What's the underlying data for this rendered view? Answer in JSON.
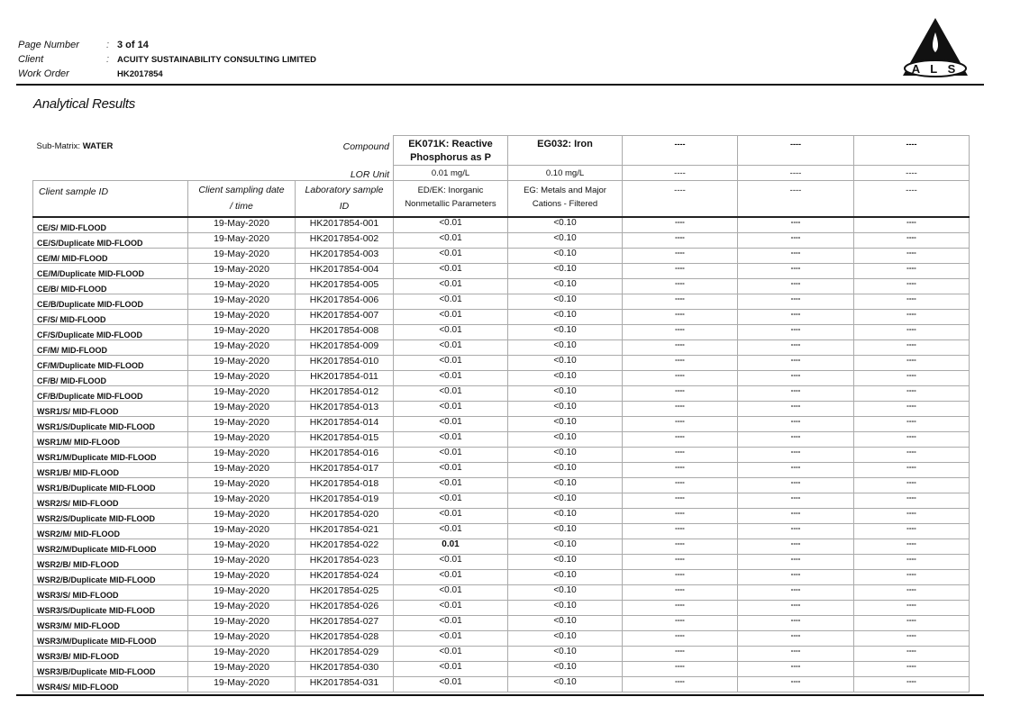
{
  "header": {
    "page_label": "Page Number",
    "page_value": "3 of 14",
    "client_label": "Client",
    "client_value": "ACUITY SUSTAINABILITY CONSULTING LIMITED",
    "work_order_label": "Work Order",
    "work_order_value": "HK2017854",
    "logo_text": "ALS"
  },
  "title": "Analytical Results",
  "table": {
    "sub_matrix_label": "Sub-Matrix: ",
    "sub_matrix_value": "WATER",
    "compound_label": "Compound",
    "lor_label": "LOR Unit",
    "col_client_id": "Client sample ID",
    "col_date_1": "Client sampling date",
    "col_date_2": "/ time",
    "col_lab_1": "Laboratory sample",
    "col_lab_2": "ID",
    "analytes": [
      {
        "compound_1": "EK071K: Reactive",
        "compound_2": "Phosphorus as P",
        "lor": "0.01 mg/L",
        "group_1": "ED/EK: Inorganic",
        "group_2": "Nonmetallic Parameters"
      },
      {
        "compound_1": "EG032: Iron",
        "compound_2": "",
        "lor": "0.10 mg/L",
        "group_1": "EG: Metals and Major",
        "group_2": "Cations - Filtered"
      },
      {
        "compound_1": "----",
        "compound_2": "",
        "lor": "----",
        "group_1": "----",
        "group_2": ""
      },
      {
        "compound_1": "----",
        "compound_2": "",
        "lor": "----",
        "group_1": "----",
        "group_2": ""
      },
      {
        "compound_1": "----",
        "compound_2": "",
        "lor": "----",
        "group_1": "----",
        "group_2": ""
      }
    ],
    "empty_cell": "----",
    "rows": [
      [
        "CE/S/ MID-FLOOD",
        "19-May-2020",
        "HK2017854-001",
        "<0.01",
        "<0.10"
      ],
      [
        "CE/S/Duplicate MID-FLOOD",
        "19-May-2020",
        "HK2017854-002",
        "<0.01",
        "<0.10"
      ],
      [
        "CE/M/ MID-FLOOD",
        "19-May-2020",
        "HK2017854-003",
        "<0.01",
        "<0.10"
      ],
      [
        "CE/M/Duplicate MID-FLOOD",
        "19-May-2020",
        "HK2017854-004",
        "<0.01",
        "<0.10"
      ],
      [
        "CE/B/ MID-FLOOD",
        "19-May-2020",
        "HK2017854-005",
        "<0.01",
        "<0.10"
      ],
      [
        "CE/B/Duplicate MID-FLOOD",
        "19-May-2020",
        "HK2017854-006",
        "<0.01",
        "<0.10"
      ],
      [
        "CF/S/ MID-FLOOD",
        "19-May-2020",
        "HK2017854-007",
        "<0.01",
        "<0.10"
      ],
      [
        "CF/S/Duplicate MID-FLOOD",
        "19-May-2020",
        "HK2017854-008",
        "<0.01",
        "<0.10"
      ],
      [
        "CF/M/ MID-FLOOD",
        "19-May-2020",
        "HK2017854-009",
        "<0.01",
        "<0.10"
      ],
      [
        "CF/M/Duplicate MID-FLOOD",
        "19-May-2020",
        "HK2017854-010",
        "<0.01",
        "<0.10"
      ],
      [
        "CF/B/ MID-FLOOD",
        "19-May-2020",
        "HK2017854-011",
        "<0.01",
        "<0.10"
      ],
      [
        "CF/B/Duplicate MID-FLOOD",
        "19-May-2020",
        "HK2017854-012",
        "<0.01",
        "<0.10"
      ],
      [
        "WSR1/S/ MID-FLOOD",
        "19-May-2020",
        "HK2017854-013",
        "<0.01",
        "<0.10"
      ],
      [
        "WSR1/S/Duplicate MID-FLOOD",
        "19-May-2020",
        "HK2017854-014",
        "<0.01",
        "<0.10"
      ],
      [
        "WSR1/M/ MID-FLOOD",
        "19-May-2020",
        "HK2017854-015",
        "<0.01",
        "<0.10"
      ],
      [
        "WSR1/M/Duplicate MID-FLOOD",
        "19-May-2020",
        "HK2017854-016",
        "<0.01",
        "<0.10"
      ],
      [
        "WSR1/B/ MID-FLOOD",
        "19-May-2020",
        "HK2017854-017",
        "<0.01",
        "<0.10"
      ],
      [
        "WSR1/B/Duplicate MID-FLOOD",
        "19-May-2020",
        "HK2017854-018",
        "<0.01",
        "<0.10"
      ],
      [
        "WSR2/S/ MID-FLOOD",
        "19-May-2020",
        "HK2017854-019",
        "<0.01",
        "<0.10"
      ],
      [
        "WSR2/S/Duplicate MID-FLOOD",
        "19-May-2020",
        "HK2017854-020",
        "<0.01",
        "<0.10"
      ],
      [
        "WSR2/M/ MID-FLOOD",
        "19-May-2020",
        "HK2017854-021",
        "<0.01",
        "<0.10"
      ],
      [
        "WSR2/M/Duplicate MID-FLOOD",
        "19-May-2020",
        "HK2017854-022",
        "0.01",
        "<0.10"
      ],
      [
        "WSR2/B/ MID-FLOOD",
        "19-May-2020",
        "HK2017854-023",
        "<0.01",
        "<0.10"
      ],
      [
        "WSR2/B/Duplicate MID-FLOOD",
        "19-May-2020",
        "HK2017854-024",
        "<0.01",
        "<0.10"
      ],
      [
        "WSR3/S/ MID-FLOOD",
        "19-May-2020",
        "HK2017854-025",
        "<0.01",
        "<0.10"
      ],
      [
        "WSR3/S/Duplicate MID-FLOOD",
        "19-May-2020",
        "HK2017854-026",
        "<0.01",
        "<0.10"
      ],
      [
        "WSR3/M/ MID-FLOOD",
        "19-May-2020",
        "HK2017854-027",
        "<0.01",
        "<0.10"
      ],
      [
        "WSR3/M/Duplicate MID-FLOOD",
        "19-May-2020",
        "HK2017854-028",
        "<0.01",
        "<0.10"
      ],
      [
        "WSR3/B/ MID-FLOOD",
        "19-May-2020",
        "HK2017854-029",
        "<0.01",
        "<0.10"
      ],
      [
        "WSR3/B/Duplicate MID-FLOOD",
        "19-May-2020",
        "HK2017854-030",
        "<0.01",
        "<0.10"
      ],
      [
        "WSR4/S/ MID-FLOOD",
        "19-May-2020",
        "HK2017854-031",
        "<0.01",
        "<0.10"
      ]
    ],
    "empty_result": "----"
  }
}
